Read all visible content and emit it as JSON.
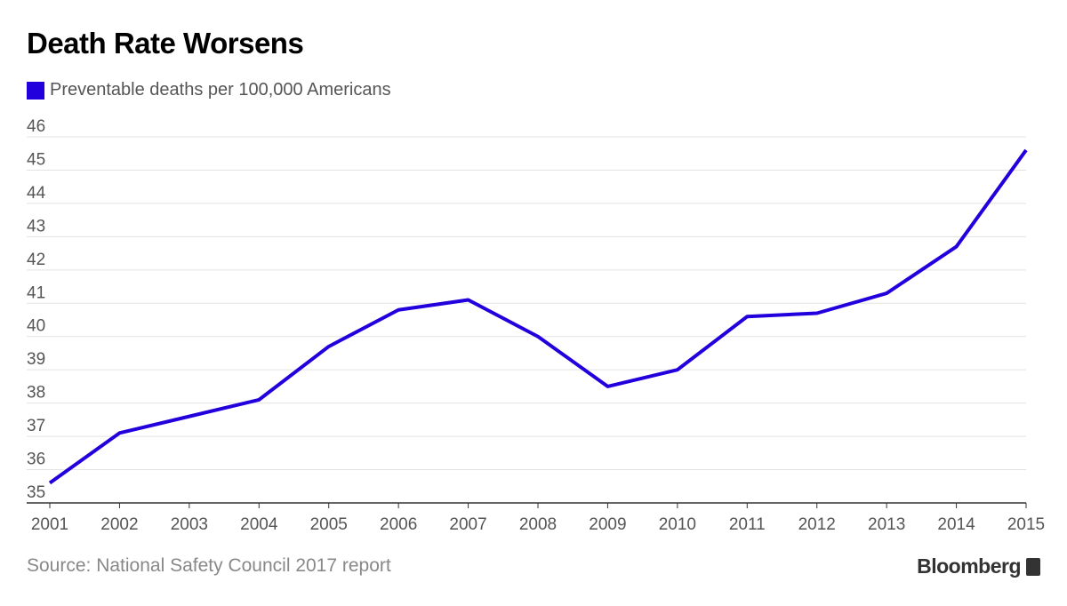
{
  "chart_data": {
    "type": "line",
    "title": "Death Rate Worsens",
    "legend": [
      {
        "label": "Preventable deaths per 100,000 Americans",
        "color": "#2200dd"
      }
    ],
    "legend_placement": "top-left",
    "x": [
      "2001",
      "2002",
      "2003",
      "2004",
      "2005",
      "2006",
      "2007",
      "2008",
      "2009",
      "2010",
      "2011",
      "2012",
      "2013",
      "2014",
      "2015"
    ],
    "series": [
      {
        "name": "Preventable deaths per 100,000 Americans",
        "values": [
          35.6,
          37.1,
          37.6,
          38.1,
          39.7,
          40.8,
          41.1,
          40.0,
          38.5,
          39.0,
          40.6,
          40.7,
          41.3,
          42.7,
          45.6
        ]
      }
    ],
    "ylim": [
      35,
      46
    ],
    "yticks": [
      "35",
      "36",
      "37",
      "38",
      "39",
      "40",
      "41",
      "42",
      "43",
      "44",
      "45",
      "46"
    ],
    "grid": true,
    "xlabel": "",
    "ylabel": ""
  },
  "footer": {
    "source": "Source: National Safety Council 2017 report",
    "brand": "Bloomberg"
  }
}
